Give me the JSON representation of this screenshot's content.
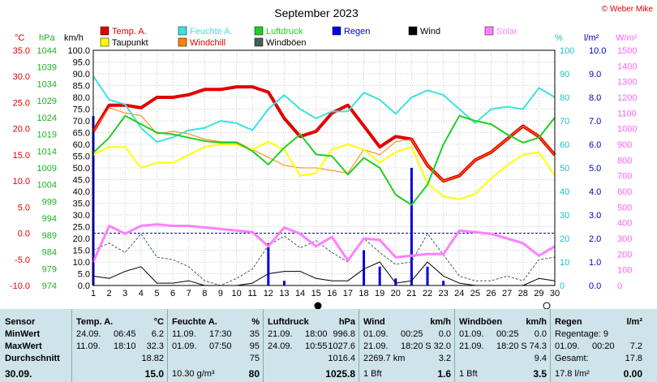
{
  "header": {
    "title": "September 2023",
    "credit": "© Weber Mike"
  },
  "legend": [
    {
      "name": "Temp. A.",
      "color": "#e00000"
    },
    {
      "name": "Taupunkt",
      "color": "#ffff00"
    },
    {
      "name": "Feuchte A.",
      "color": "#40e0e0"
    },
    {
      "name": "Windchill",
      "color": "#ff8000"
    },
    {
      "name": "Luftdruck",
      "color": "#20d020"
    },
    {
      "name": "Windböen",
      "color": "#406060"
    },
    {
      "name": "Regen",
      "color": "#0000e0"
    },
    {
      "name": "Wind",
      "color": "#000000"
    },
    {
      "name": "Solar",
      "color": "#ff80ff"
    }
  ],
  "axis_units": {
    "temp": "°C",
    "pressure": "hPa",
    "wind": "km/h",
    "humidity": "%",
    "rain": "l/m²",
    "solar": "W/m²"
  },
  "chart_data": {
    "type": "line",
    "x": [
      1,
      2,
      3,
      4,
      5,
      6,
      7,
      8,
      9,
      10,
      11,
      12,
      13,
      14,
      15,
      16,
      17,
      18,
      19,
      20,
      21,
      22,
      23,
      24,
      25,
      26,
      27,
      28,
      29,
      30
    ],
    "x_ticks": [
      "1",
      "2",
      "3",
      "4",
      "5",
      "6",
      "7",
      "8",
      "9",
      "10",
      "11",
      "12",
      "13",
      "14",
      "15",
      "16",
      "17",
      "18",
      "19",
      "20",
      "21",
      "22",
      "23",
      "24",
      "25",
      "26",
      "27",
      "28",
      "29",
      "30"
    ],
    "axes": {
      "temp": {
        "min": -10,
        "max": 35,
        "ticks": [
          "35.0",
          "30.0",
          "25.0",
          "20.0",
          "15.0",
          "10.0",
          "5.0",
          "0.0",
          "-5.0",
          "-10.0"
        ],
        "color": "#e00000"
      },
      "pressure": {
        "min": 974,
        "max": 1044,
        "ticks": [
          "1044",
          "1039",
          "1034",
          "1029",
          "1024",
          "1019",
          "1014",
          "1009",
          "1004",
          "999",
          "994",
          "989",
          "984",
          "979",
          "974"
        ],
        "color": "#20b020"
      },
      "wind": {
        "min": 0,
        "max": 100,
        "ticks": [
          "100.0",
          "95.0",
          "90.0",
          "85.0",
          "80.0",
          "75.0",
          "70.0",
          "65.0",
          "60.0",
          "55.0",
          "50.0",
          "45.0",
          "40.0",
          "35.0",
          "30.0",
          "25.0",
          "20.0",
          "15.0",
          "10.0",
          "5.0",
          "0.0"
        ],
        "color": "#000000"
      },
      "humidity": {
        "min": 0,
        "max": 100,
        "ticks": [
          "100",
          "90",
          "80",
          "70",
          "60",
          "50",
          "40",
          "30",
          "20",
          "10",
          "0"
        ],
        "color": "#20c0c0"
      },
      "rain": {
        "min": 0,
        "max": 10,
        "ticks": [
          "10.0",
          "9.0",
          "8.0",
          "7.0",
          "6.0",
          "5.0",
          "4.0",
          "3.0",
          "2.0",
          "1.0",
          "0.0"
        ],
        "color": "#0000c0"
      },
      "solar": {
        "min": 0,
        "max": 1500,
        "ticks": [
          "1500",
          "1400",
          "1300",
          "1200",
          "1100",
          "1000",
          "900",
          "800",
          "700",
          "600",
          "500",
          "400",
          "300",
          "200",
          "100",
          "0"
        ],
        "color": "#ff60ff"
      }
    },
    "series": [
      {
        "name": "Temp. A.",
        "axis": "temp",
        "color": "#e00000",
        "width": 4,
        "values": [
          19.5,
          24.5,
          24.5,
          24.0,
          26.0,
          26.0,
          26.5,
          27.5,
          27.5,
          28.0,
          28.0,
          27.0,
          22.0,
          18.5,
          19.5,
          23.0,
          24.5,
          20.5,
          16.5,
          18.5,
          18.0,
          13.0,
          10.0,
          11.0,
          14.0,
          15.5,
          18.0,
          20.5,
          18.5,
          15.0
        ]
      },
      {
        "name": "Windchill",
        "axis": "temp",
        "color": "#ff8000",
        "width": 1,
        "values": [
          19.5,
          24.0,
          23.0,
          22.5,
          19.0,
          19.5,
          19.0,
          18.0,
          17.5,
          17.5,
          16.0,
          14.5,
          13.0,
          12.5,
          12.5,
          12.0,
          11.5,
          16.0,
          15.0,
          17.5,
          18.0,
          13.0,
          10.0,
          11.0,
          14.0,
          15.5,
          18.0,
          20.5,
          18.5,
          15.0
        ]
      },
      {
        "name": "Taupunkt",
        "axis": "temp",
        "color": "#ffff00",
        "width": 2,
        "values": [
          15.0,
          16.5,
          16.5,
          12.5,
          13.5,
          13.5,
          15.0,
          16.5,
          17.0,
          17.0,
          16.0,
          17.5,
          16.0,
          11.0,
          11.5,
          16.0,
          17.0,
          16.0,
          13.5,
          15.5,
          16.5,
          9.5,
          7.0,
          6.5,
          7.5,
          10.5,
          13.0,
          15.0,
          15.5,
          11.0
        ]
      },
      {
        "name": "Feuchte A.",
        "axis": "humidity",
        "color": "#40e0e0",
        "width": 2,
        "values": [
          89,
          79,
          77,
          67,
          61,
          63,
          66,
          67,
          70,
          69,
          66,
          75,
          81,
          75,
          71,
          74,
          74,
          82,
          79,
          73,
          80,
          83,
          81,
          75,
          69,
          75,
          76,
          75,
          84,
          80
        ]
      },
      {
        "name": "Luftdruck",
        "axis": "pressure",
        "color": "#20d020",
        "width": 2,
        "values": [
          1013.5,
          1018,
          1024.5,
          1022,
          1019.5,
          1019,
          1018,
          1017,
          1016.5,
          1016.5,
          1014,
          1010,
          1015,
          1019,
          1013,
          1012.5,
          1007,
          1012,
          1009,
          1001,
          998,
          1004,
          1016,
          1024.5,
          1023,
          1022,
          1019,
          1016.5,
          1018,
          1024
        ]
      },
      {
        "name": "Wind",
        "axis": "wind",
        "color": "#000000",
        "width": 1,
        "values": [
          4,
          3,
          6,
          8,
          1,
          1,
          2,
          0,
          0,
          0,
          1,
          5,
          6,
          6,
          3,
          2,
          2,
          7,
          10,
          1,
          2,
          10,
          4,
          1,
          0,
          0,
          0,
          0,
          3,
          2
        ]
      },
      {
        "name": "Windböen",
        "axis": "wind",
        "color": "#406060",
        "width": 1,
        "values": [
          15,
          18,
          14,
          22,
          12,
          11,
          8,
          2,
          0,
          3,
          7,
          17,
          21,
          16,
          19,
          14,
          10,
          20,
          14,
          9,
          10,
          22,
          13,
          4,
          2,
          2,
          4,
          2,
          11,
          12
        ]
      },
      {
        "name": "Solar",
        "axis": "solar",
        "color": "#ff80ff",
        "width": 3,
        "values": [
          150,
          380,
          330,
          380,
          390,
          380,
          380,
          370,
          360,
          350,
          340,
          250,
          370,
          330,
          250,
          310,
          160,
          300,
          290,
          180,
          190,
          200,
          200,
          350,
          340,
          330,
          300,
          270,
          190,
          250
        ]
      }
    ],
    "bars": {
      "name": "Regen",
      "axis": "rain",
      "color": "#0000e0",
      "days": [
        1,
        12,
        13,
        18,
        19,
        20,
        21,
        22,
        23
      ],
      "values": [
        7.2,
        1.8,
        0.2,
        1.5,
        0.8,
        0.3,
        5.0,
        0.8,
        0.2
      ]
    },
    "reference_line": {
      "axis": "temp",
      "value": 0.0
    }
  },
  "stats": {
    "sensor_col": {
      "header": "Sensor",
      "rows": [
        "MinWert",
        "MaxWert",
        "Durchschnitt"
      ],
      "footer": "30.09."
    },
    "temp_col": {
      "header": "Temp. A.",
      "unit": "°C",
      "rows": [
        [
          "24.09.",
          "06:45",
          "6.2"
        ],
        [
          "11.09.",
          "18:10",
          "32.3"
        ],
        [
          "",
          "",
          "18.82"
        ]
      ],
      "footer": "15.0"
    },
    "hum_col": {
      "header": "Feuchte A.",
      "unit": "%",
      "rows": [
        [
          "11.09.",
          "17:30",
          "35"
        ],
        [
          "01.09.",
          "07:50",
          "95"
        ],
        [
          "",
          "",
          "75"
        ]
      ],
      "footer_left": "10.30 g/m³",
      "footer": "80"
    },
    "press_col": {
      "header": "Luftdruck",
      "unit": "hPa",
      "rows": [
        [
          "21.09.",
          "18:00",
          "996.8"
        ],
        [
          "24.09.",
          "10:55",
          "1027.6"
        ],
        [
          "",
          "",
          "1016.4"
        ]
      ],
      "footer": "1025.8"
    },
    "wind_col": {
      "header": "Wind",
      "unit": "km/h",
      "rows": [
        [
          "01.09.",
          "00:25",
          "0.0"
        ],
        [
          "21.09.",
          "18:20",
          "S 32.0"
        ],
        [
          "2269.7 km",
          "",
          "3.2"
        ]
      ],
      "footer_left": "1 Bft",
      "footer": "1.6"
    },
    "gust_col": {
      "header": "Windböen",
      "unit": "km/h",
      "rows": [
        [
          "01.09.",
          "00:25",
          "0.0"
        ],
        [
          "21.09.",
          "18:20",
          "S 74.3"
        ],
        [
          "",
          "",
          "9.4"
        ]
      ],
      "footer_left": "1 Bft",
      "footer": "3.5"
    },
    "rain_col": {
      "header": "Regen",
      "unit": "l/m²",
      "rows": [
        [
          "Regentage: 9",
          "",
          ""
        ],
        [
          "01.09.",
          "00:20",
          "7.2"
        ],
        [
          "Gesamt:",
          "",
          "17.8"
        ]
      ],
      "footer_left": "17.8 l/m²",
      "footer": "0.00"
    }
  }
}
